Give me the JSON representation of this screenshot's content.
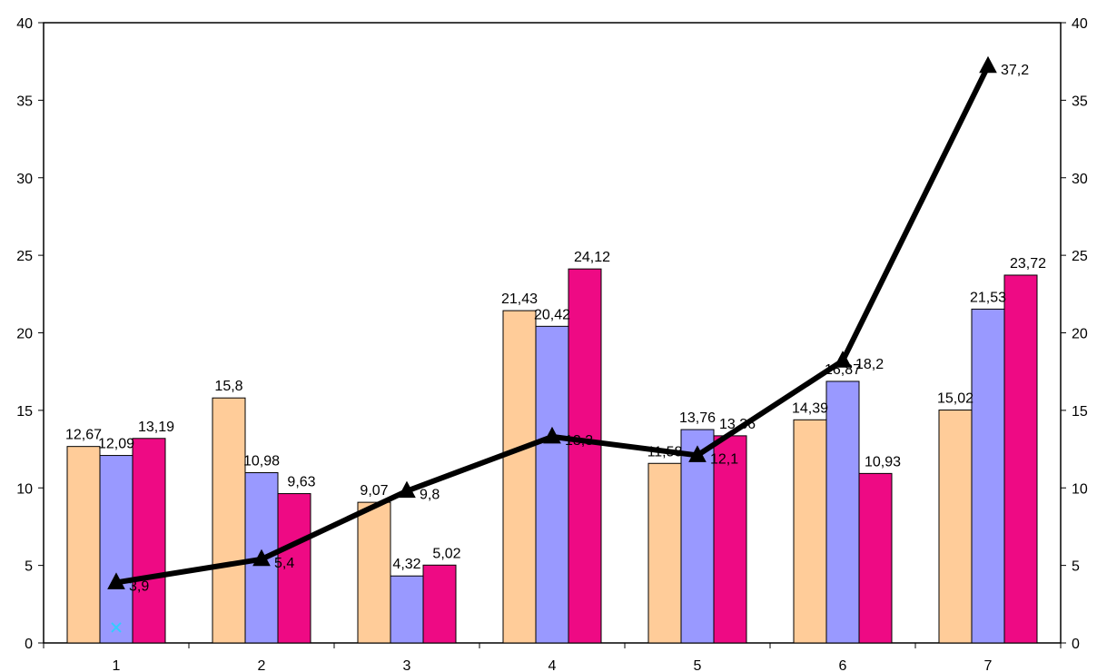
{
  "chart_data": {
    "type": "bar",
    "categories": [
      "1",
      "2",
      "3",
      "4",
      "5",
      "6",
      "7"
    ],
    "series": [
      {
        "chart_kind": "bar",
        "color": "#FFCC99",
        "values": [
          12.67,
          15.8,
          9.07,
          21.43,
          11.58,
          14.39,
          15.02
        ],
        "labels": [
          "12,67",
          "15,8",
          "9,07",
          "21,43",
          "11,58",
          "14,39",
          "15,02"
        ]
      },
      {
        "chart_kind": "bar",
        "color": "#9999FF",
        "values": [
          12.09,
          10.98,
          4.32,
          20.42,
          13.76,
          16.87,
          21.53
        ],
        "labels": [
          "12,09",
          "10,98",
          "4,32",
          "20,42",
          "13,76",
          "16,87",
          "21,53"
        ]
      },
      {
        "chart_kind": "bar",
        "color": "#EE0A84",
        "values": [
          13.19,
          9.63,
          5.02,
          24.12,
          13.36,
          10.93,
          23.72
        ],
        "labels": [
          "13,19",
          "9,63",
          "5,02",
          "24,12",
          "13,36",
          "10,93",
          "23,72"
        ]
      },
      {
        "chart_kind": "line",
        "color": "#000000",
        "marker": "triangle",
        "axis": "right",
        "values": [
          3.9,
          5.4,
          9.8,
          13.3,
          12.1,
          18.2,
          37.2
        ],
        "labels": [
          "3,9",
          "5,4",
          "9,8",
          "13,3",
          "12,1",
          "18,2",
          "37,2"
        ]
      },
      {
        "chart_kind": "scatter",
        "color": "#33CCFF",
        "marker": "x",
        "x": [
          "1"
        ],
        "values": [
          1
        ]
      }
    ],
    "ylim": [
      0,
      40
    ],
    "y2lim": [
      0,
      40
    ],
    "yticks": [
      "0",
      "5",
      "10",
      "15",
      "20",
      "25",
      "30",
      "35",
      "40"
    ],
    "y2ticks": [
      "0",
      "5",
      "10",
      "15",
      "20",
      "25",
      "30",
      "35",
      "40"
    ],
    "grid": false,
    "legend": "none"
  }
}
